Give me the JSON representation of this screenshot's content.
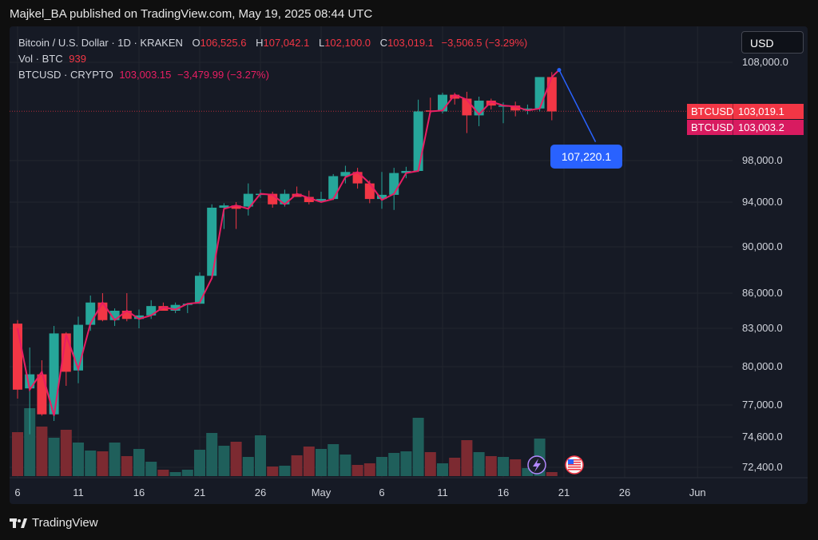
{
  "header": {
    "publisher_line": "Majkel_BA published on TradingView.com, May 19, 2025 08:44 UTC"
  },
  "legend": {
    "symbol": "Bitcoin / U.S. Dollar · 1D · KRAKEN",
    "o_label": "O",
    "o_value": "106,525.6",
    "h_label": "H",
    "h_value": "107,042.1",
    "l_label": "L",
    "l_value": "102,100.0",
    "c_label": "C",
    "c_value": "103,019.1",
    "change": "−3,506.5 (−3.29%)",
    "vol_label": "Vol · BTC",
    "vol_value": "939",
    "compare_label": "BTCUSD · CRYPTO",
    "compare_value": "103,003.15",
    "compare_change": "−3,479.99 (−3.27%)"
  },
  "currency_button": "USD",
  "price_tags": [
    {
      "name": "BTCUSD",
      "value": "103,019.1",
      "color": "#f23645"
    },
    {
      "name": "BTCUSD",
      "value": "103,003.2",
      "color": "#d81b60"
    }
  ],
  "target_label": "107,220.1",
  "brand": {
    "name": "TradingView"
  },
  "chart_data": {
    "type": "candlestick",
    "colors": {
      "up": "#26a69a",
      "down": "#f23645",
      "line": "#e91e63",
      "target": "#2962ff",
      "last_price_line": "#f23645"
    },
    "y_ticks": [
      {
        "value": 108000,
        "label": "108,000.0"
      },
      {
        "value": 98000,
        "label": "98,000.0"
      },
      {
        "value": 94000,
        "label": "94,000.0"
      },
      {
        "value": 90000,
        "label": "90,000.0"
      },
      {
        "value": 86000,
        "label": "86,000.0"
      },
      {
        "value": 83000,
        "label": "83,000.0"
      },
      {
        "value": 80000,
        "label": "80,000.0"
      },
      {
        "value": 77000,
        "label": "77,000.0"
      },
      {
        "value": 74600,
        "label": "74,600.0"
      },
      {
        "value": 72400,
        "label": "72,400.0"
      }
    ],
    "x_ticks": [
      {
        "day": 6,
        "label": "6"
      },
      {
        "day": 11,
        "label": "11"
      },
      {
        "day": 16,
        "label": "16"
      },
      {
        "day": 21,
        "label": "21"
      },
      {
        "day": 26,
        "label": "26"
      },
      {
        "day": 31,
        "label": "May"
      },
      {
        "day": 36,
        "label": "6"
      },
      {
        "day": 41,
        "label": "11"
      },
      {
        "day": 46,
        "label": "16"
      },
      {
        "day": 51,
        "label": "21"
      },
      {
        "day": 56,
        "label": "26"
      },
      {
        "day": 62,
        "label": "Jun"
      }
    ],
    "candles": [
      {
        "d": 6,
        "o": 83400,
        "h": 83700,
        "l": 77500,
        "c": 78200,
        "v": 0.55
      },
      {
        "d": 7,
        "o": 78300,
        "h": 81500,
        "l": 74800,
        "c": 79400,
        "v": 0.85
      },
      {
        "d": 8,
        "o": 79400,
        "h": 80500,
        "l": 76200,
        "c": 76300,
        "v": 0.62
      },
      {
        "d": 9,
        "o": 76300,
        "h": 83200,
        "l": 75800,
        "c": 82600,
        "v": 0.48
      },
      {
        "d": 10,
        "o": 82600,
        "h": 82700,
        "l": 78500,
        "c": 79600,
        "v": 0.58
      },
      {
        "d": 11,
        "o": 79700,
        "h": 84000,
        "l": 78700,
        "c": 83300,
        "v": 0.42
      },
      {
        "d": 12,
        "o": 83300,
        "h": 85800,
        "l": 82800,
        "c": 85200,
        "v": 0.32
      },
      {
        "d": 13,
        "o": 85200,
        "h": 86000,
        "l": 83600,
        "c": 83700,
        "v": 0.31
      },
      {
        "d": 14,
        "o": 83700,
        "h": 84700,
        "l": 83200,
        "c": 84500,
        "v": 0.42
      },
      {
        "d": 15,
        "o": 84500,
        "h": 86000,
        "l": 83600,
        "c": 83800,
        "v": 0.25
      },
      {
        "d": 16,
        "o": 83800,
        "h": 84600,
        "l": 83000,
        "c": 84100,
        "v": 0.34
      },
      {
        "d": 17,
        "o": 84100,
        "h": 85400,
        "l": 83800,
        "c": 84900,
        "v": 0.18
      },
      {
        "d": 18,
        "o": 84900,
        "h": 85200,
        "l": 84500,
        "c": 84500,
        "v": 0.08
      },
      {
        "d": 19,
        "o": 84500,
        "h": 85200,
        "l": 84300,
        "c": 85000,
        "v": 0.05
      },
      {
        "d": 20,
        "o": 85000,
        "h": 85100,
        "l": 84300,
        "c": 85100,
        "v": 0.08
      },
      {
        "d": 21,
        "o": 85100,
        "h": 87800,
        "l": 85100,
        "c": 87500,
        "v": 0.33
      },
      {
        "d": 22,
        "o": 87500,
        "h": 93800,
        "l": 87200,
        "c": 93500,
        "v": 0.54
      },
      {
        "d": 23,
        "o": 93500,
        "h": 93900,
        "l": 91600,
        "c": 93700,
        "v": 0.38
      },
      {
        "d": 24,
        "o": 93700,
        "h": 94000,
        "l": 91600,
        "c": 93400,
        "v": 0.43
      },
      {
        "d": 25,
        "o": 93600,
        "h": 95800,
        "l": 92800,
        "c": 94800,
        "v": 0.24
      },
      {
        "d": 26,
        "o": 94800,
        "h": 95200,
        "l": 94400,
        "c": 94800,
        "v": 0.51
      },
      {
        "d": 27,
        "o": 94800,
        "h": 95000,
        "l": 93500,
        "c": 93800,
        "v": 0.12
      },
      {
        "d": 28,
        "o": 93800,
        "h": 95200,
        "l": 93600,
        "c": 94800,
        "v": 0.13
      },
      {
        "d": 29,
        "o": 94800,
        "h": 95500,
        "l": 94500,
        "c": 94500,
        "v": 0.26
      },
      {
        "d": 30,
        "o": 94500,
        "h": 95100,
        "l": 93800,
        "c": 94000,
        "v": 0.37
      },
      {
        "d": 31,
        "o": 94100,
        "h": 95000,
        "l": 94000,
        "c": 94300,
        "v": 0.34
      },
      {
        "d": 32,
        "o": 94300,
        "h": 96700,
        "l": 94200,
        "c": 96500,
        "v": 0.4
      },
      {
        "d": 33,
        "o": 96500,
        "h": 97500,
        "l": 95800,
        "c": 96900,
        "v": 0.27
      },
      {
        "d": 34,
        "o": 96900,
        "h": 97300,
        "l": 95300,
        "c": 95800,
        "v": 0.14
      },
      {
        "d": 35,
        "o": 95800,
        "h": 96100,
        "l": 93900,
        "c": 94300,
        "v": 0.16
      },
      {
        "d": 36,
        "o": 94300,
        "h": 96900,
        "l": 93400,
        "c": 94700,
        "v": 0.24
      },
      {
        "d": 37,
        "o": 94700,
        "h": 97300,
        "l": 93300,
        "c": 96800,
        "v": 0.29
      },
      {
        "d": 38,
        "o": 96800,
        "h": 97400,
        "l": 96300,
        "c": 97000,
        "v": 0.31
      },
      {
        "d": 39,
        "o": 97000,
        "h": 104200,
        "l": 96900,
        "c": 103000,
        "v": 0.73
      },
      {
        "d": 40,
        "o": 103100,
        "h": 104400,
        "l": 102800,
        "c": 103000,
        "v": 0.3
      },
      {
        "d": 41,
        "o": 103000,
        "h": 104900,
        "l": 102800,
        "c": 104700,
        "v": 0.16
      },
      {
        "d": 42,
        "o": 104700,
        "h": 104900,
        "l": 103700,
        "c": 104300,
        "v": 0.23
      },
      {
        "d": 43,
        "o": 104300,
        "h": 105000,
        "l": 100800,
        "c": 102600,
        "v": 0.45
      },
      {
        "d": 44,
        "o": 102600,
        "h": 104500,
        "l": 101500,
        "c": 104100,
        "v": 0.3
      },
      {
        "d": 45,
        "o": 104100,
        "h": 104300,
        "l": 103200,
        "c": 103600,
        "v": 0.25
      },
      {
        "d": 46,
        "o": 103500,
        "h": 103900,
        "l": 101800,
        "c": 103600,
        "v": 0.24
      },
      {
        "d": 47,
        "o": 103600,
        "h": 104000,
        "l": 102500,
        "c": 103100,
        "v": 0.21
      },
      {
        "d": 48,
        "o": 103100,
        "h": 103700,
        "l": 102700,
        "c": 103300,
        "v": 0.1
      },
      {
        "d": 49,
        "o": 103300,
        "h": 106500,
        "l": 103000,
        "c": 106500,
        "v": 0.47
      },
      {
        "d": 50,
        "o": 106500,
        "h": 107000,
        "l": 102100,
        "c": 103000,
        "v": 0.05
      }
    ],
    "compare_line": [
      {
        "d": 6,
        "v": 83000
      },
      {
        "d": 7,
        "v": 78200
      },
      {
        "d": 8,
        "v": 79600
      },
      {
        "d": 9,
        "v": 76200
      },
      {
        "d": 10,
        "v": 82500
      },
      {
        "d": 11,
        "v": 79800
      },
      {
        "d": 12,
        "v": 83400
      },
      {
        "d": 13,
        "v": 85200
      },
      {
        "d": 14,
        "v": 83700
      },
      {
        "d": 15,
        "v": 84500
      },
      {
        "d": 16,
        "v": 83800
      },
      {
        "d": 17,
        "v": 84100
      },
      {
        "d": 18,
        "v": 84800
      },
      {
        "d": 19,
        "v": 84600
      },
      {
        "d": 20,
        "v": 85100
      },
      {
        "d": 21,
        "v": 85200
      },
      {
        "d": 22,
        "v": 87300
      },
      {
        "d": 23,
        "v": 93400
      },
      {
        "d": 24,
        "v": 93700
      },
      {
        "d": 25,
        "v": 93400
      },
      {
        "d": 26,
        "v": 94800
      },
      {
        "d": 27,
        "v": 94700
      },
      {
        "d": 28,
        "v": 93800
      },
      {
        "d": 29,
        "v": 94800
      },
      {
        "d": 30,
        "v": 94400
      },
      {
        "d": 31,
        "v": 94000
      },
      {
        "d": 32,
        "v": 94300
      },
      {
        "d": 33,
        "v": 96400
      },
      {
        "d": 34,
        "v": 96900
      },
      {
        "d": 35,
        "v": 95800
      },
      {
        "d": 36,
        "v": 94200
      },
      {
        "d": 37,
        "v": 94800
      },
      {
        "d": 38,
        "v": 96800
      },
      {
        "d": 39,
        "v": 97000
      },
      {
        "d": 40,
        "v": 103000
      },
      {
        "d": 41,
        "v": 103100
      },
      {
        "d": 42,
        "v": 104700
      },
      {
        "d": 43,
        "v": 104200
      },
      {
        "d": 44,
        "v": 102700
      },
      {
        "d": 45,
        "v": 104000
      },
      {
        "d": 46,
        "v": 103600
      },
      {
        "d": 47,
        "v": 103500
      },
      {
        "d": 48,
        "v": 103100
      },
      {
        "d": 49,
        "v": 103300
      },
      {
        "d": 50,
        "v": 106500
      },
      {
        "d": 50.6,
        "v": 107220
      }
    ],
    "target": {
      "from_day": 50.6,
      "from_value": 107220,
      "to_day": 53.6,
      "to_value": 99900,
      "label_value": 107220.1
    },
    "last_price": 103019.1
  }
}
